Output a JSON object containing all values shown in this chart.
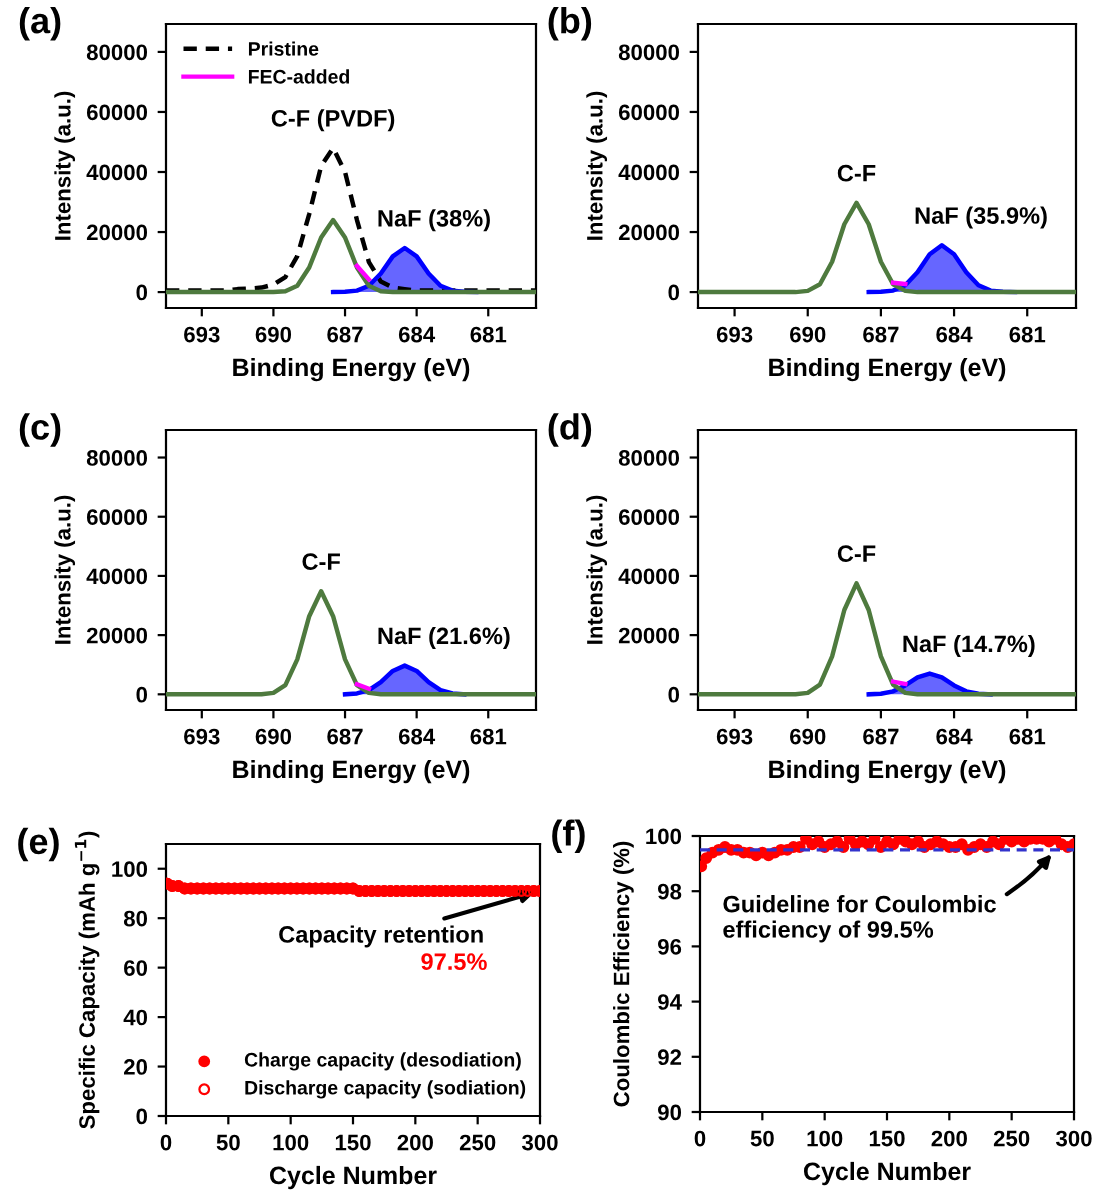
{
  "chart_data": [
    {
      "type": "line",
      "xlabel": "Binding Energy (eV)",
      "ylabel": "Intensity (a.u.)",
      "xlim": [
        694.5,
        679.0
      ],
      "xticks": [
        693,
        690,
        687,
        684,
        681
      ],
      "ylim": [
        -5300,
        89300
      ],
      "yticks": [
        0,
        20000,
        40000,
        60000,
        80000
      ],
      "legend": "top left",
      "x": [
        694.5,
        694,
        693.5,
        693,
        692.5,
        692,
        691.5,
        691,
        690.5,
        690,
        689.5,
        689,
        688.5,
        688,
        687.5,
        687,
        686.5,
        686,
        685.5,
        685,
        684.5,
        684,
        683.5,
        683,
        682.5,
        682,
        681.5,
        681,
        680.5,
        680,
        679.5,
        679
      ],
      "series": [
        {
          "name": "Pristine",
          "color": "#000000",
          "line_style": "dashed",
          "values": [
            500,
            500,
            500,
            500,
            500,
            500,
            1000,
            1200,
            1500,
            2500,
            5000,
            12000,
            26000,
            42000,
            48000,
            40000,
            24000,
            10000,
            3500,
            1500,
            1000,
            500,
            500,
            500,
            500,
            500,
            500,
            500,
            500,
            500,
            500,
            500
          ]
        },
        {
          "type": "area",
          "color": "#0000ff",
          "values": [
            null,
            null,
            null,
            null,
            null,
            null,
            null,
            null,
            null,
            null,
            null,
            null,
            null,
            null,
            0,
            100,
            500,
            2100,
            6200,
            11900,
            14700,
            11900,
            6200,
            2100,
            500,
            100,
            0,
            null,
            null,
            null,
            null,
            null
          ]
        },
        {
          "color": "#4e7a3e",
          "values": [
            0,
            0,
            0,
            0,
            0,
            0,
            0,
            0,
            0,
            0,
            300,
            2100,
            8200,
            18200,
            24000,
            18200,
            8200,
            2100,
            300,
            0,
            0,
            0,
            0,
            0,
            0,
            0,
            0,
            0,
            0,
            0,
            0,
            0
          ]
        },
        {
          "name": "FEC-added",
          "color": "#ff00ff",
          "values": [
            null,
            null,
            null,
            null,
            null,
            null,
            null,
            null,
            null,
            null,
            null,
            null,
            null,
            null,
            null,
            null,
            8700,
            4200,
            null,
            null,
            null,
            null,
            null,
            null,
            null,
            null,
            null,
            null,
            null,
            null,
            null,
            null
          ]
        }
      ],
      "annotations": [
        "(a)",
        {
          "text": "C-F (PVDF)",
          "x": 687.5,
          "y": 48000
        },
        {
          "text": "NaF (38%)",
          "x": 684.5,
          "y": 14700
        }
      ]
    },
    {
      "type": "line",
      "xlabel": "Binding Energy (eV)",
      "ylabel": "Intensity (a.u.)",
      "xlim": [
        694.5,
        679.0
      ],
      "xticks": [
        693,
        690,
        687,
        684,
        681
      ],
      "ylim": [
        -5300,
        89300
      ],
      "yticks": [
        0,
        20000,
        40000,
        60000,
        80000
      ],
      "x": [
        694.5,
        694,
        693.5,
        693,
        692.5,
        692,
        691.5,
        691,
        690.5,
        690,
        689.5,
        689,
        688.5,
        688,
        687.5,
        687,
        686.5,
        686,
        685.5,
        685,
        684.5,
        684,
        683.5,
        683,
        682.5,
        682,
        681.5,
        681,
        680.5,
        680,
        679.5,
        679
      ],
      "series": [
        {
          "type": "area",
          "color": "#0000ff",
          "values": [
            null,
            null,
            null,
            null,
            null,
            null,
            null,
            null,
            null,
            null,
            null,
            null,
            null,
            null,
            0,
            100,
            500,
            2300,
            6600,
            12600,
            15600,
            12600,
            6600,
            2300,
            500,
            100,
            0,
            null,
            null,
            null,
            null,
            null
          ]
        },
        {
          "color": "#4e7a3e",
          "values": [
            0,
            0,
            0,
            0,
            0,
            0,
            0,
            0,
            0,
            400,
            2600,
            10100,
            22600,
            29700,
            22600,
            10100,
            2600,
            400,
            0,
            0,
            0,
            0,
            0,
            0,
            0,
            0,
            0,
            0,
            0,
            0,
            0,
            0
          ]
        },
        {
          "color": "#ff00ff",
          "values": [
            null,
            null,
            null,
            null,
            null,
            null,
            null,
            null,
            null,
            null,
            null,
            null,
            null,
            null,
            null,
            null,
            3100,
            2700,
            null,
            null,
            null,
            null,
            null,
            null,
            null,
            null,
            null,
            null,
            null,
            null,
            null,
            null
          ]
        }
      ],
      "annotations": [
        "(b)",
        {
          "text": "C-F",
          "x": 688,
          "y": 29700
        },
        {
          "text": "NaF (35.9%)",
          "x": 684.5,
          "y": 15600
        }
      ]
    },
    {
      "type": "line",
      "xlabel": "Binding Energy (eV)",
      "ylabel": "Intensity (a.u.)",
      "xlim": [
        694.5,
        679.0
      ],
      "xticks": [
        693,
        690,
        687,
        684,
        681
      ],
      "ylim": [
        -5300,
        89300
      ],
      "yticks": [
        0,
        20000,
        40000,
        60000,
        80000
      ],
      "x": [
        694.5,
        694,
        693.5,
        693,
        692.5,
        692,
        691.5,
        691,
        690.5,
        690,
        689.5,
        689,
        688.5,
        688,
        687.5,
        687,
        686.5,
        686,
        685.5,
        685,
        684.5,
        684,
        683.5,
        683,
        682.5,
        682,
        681.5,
        681,
        680.5,
        680,
        679.5,
        679
      ],
      "series": [
        {
          "type": "area",
          "color": "#0000ff",
          "values": [
            null,
            null,
            null,
            null,
            null,
            null,
            null,
            null,
            null,
            null,
            null,
            null,
            null,
            null,
            null,
            0,
            300,
            1400,
            4100,
            7900,
            9700,
            7900,
            4100,
            1400,
            300,
            0,
            null,
            null,
            null,
            null,
            null,
            null
          ]
        },
        {
          "color": "#4e7a3e",
          "values": [
            0,
            0,
            0,
            0,
            0,
            0,
            0,
            0,
            0,
            500,
            3100,
            11800,
            26400,
            34800,
            26400,
            11800,
            3100,
            500,
            0,
            0,
            0,
            0,
            0,
            0,
            0,
            0,
            0,
            0,
            0,
            0,
            0,
            0
          ]
        },
        {
          "color": "#ff00ff",
          "values": [
            null,
            null,
            null,
            null,
            null,
            null,
            null,
            null,
            null,
            null,
            null,
            null,
            null,
            null,
            null,
            null,
            3400,
            1900,
            null,
            null,
            null,
            null,
            null,
            null,
            null,
            null,
            null,
            null,
            null,
            null,
            null,
            null
          ]
        }
      ],
      "annotations": [
        "(c)",
        {
          "text": "C-F",
          "x": 688,
          "y": 34800
        },
        {
          "text": "NaF (21.6%)",
          "x": 684.5,
          "y": 9700
        }
      ]
    },
    {
      "type": "line",
      "xlabel": "Binding Energy (eV)",
      "ylabel": "Intensity (a.u.)",
      "xlim": [
        694.5,
        679.0
      ],
      "xticks": [
        693,
        690,
        687,
        684,
        681
      ],
      "ylim": [
        -5300,
        89300
      ],
      "yticks": [
        0,
        20000,
        40000,
        60000,
        80000
      ],
      "x": [
        694.5,
        694,
        693.5,
        693,
        692.5,
        692,
        691.5,
        691,
        690.5,
        690,
        689.5,
        689,
        688.5,
        688,
        687.5,
        687,
        686.5,
        686,
        685.5,
        685,
        684.5,
        684,
        683.5,
        683,
        682.5,
        682,
        681.5,
        681,
        680.5,
        680,
        679.5,
        679
      ],
      "series": [
        {
          "type": "area",
          "color": "#0000ff",
          "values": [
            null,
            null,
            null,
            null,
            null,
            null,
            null,
            null,
            null,
            null,
            null,
            null,
            null,
            null,
            0,
            200,
            1000,
            3000,
            5700,
            7000,
            5700,
            3000,
            1000,
            200,
            0,
            null,
            null,
            null,
            null,
            null,
            null,
            null
          ]
        },
        {
          "color": "#4e7a3e",
          "values": [
            0,
            0,
            0,
            0,
            0,
            0,
            0,
            0,
            0,
            500,
            3300,
            12800,
            28500,
            37500,
            28500,
            12800,
            3300,
            500,
            0,
            0,
            0,
            0,
            0,
            0,
            0,
            0,
            0,
            0,
            0,
            0,
            0,
            0
          ]
        },
        {
          "color": "#ff00ff",
          "values": [
            null,
            null,
            null,
            null,
            null,
            null,
            null,
            null,
            null,
            null,
            null,
            null,
            null,
            null,
            null,
            null,
            4300,
            3500,
            null,
            null,
            null,
            null,
            null,
            null,
            null,
            null,
            null,
            null,
            null,
            null,
            null,
            null
          ]
        }
      ],
      "annotations": [
        "(d)",
        {
          "text": "C-F",
          "x": 688,
          "y": 37500
        },
        {
          "text": "NaF (14.7%)",
          "x": 685,
          "y": 7000
        }
      ]
    },
    {
      "type": "scatter",
      "marker": "circle",
      "xlabel": "Cycle Number",
      "ylabel": "Specific Capacity (mAh g$^{−1}$)",
      "xlim": [
        0,
        300
      ],
      "xticks": [
        0,
        50,
        100,
        150,
        200,
        250,
        300
      ],
      "ylim": [
        0,
        110
      ],
      "yticks": [
        0,
        20,
        40,
        60,
        80,
        100
      ],
      "legend": "bottom",
      "x": [
        1,
        5,
        10,
        15,
        20,
        25,
        30,
        35,
        40,
        45,
        50,
        55,
        60,
        65,
        70,
        75,
        80,
        85,
        90,
        95,
        100,
        105,
        110,
        115,
        120,
        125,
        130,
        135,
        140,
        145,
        150,
        155,
        160,
        165,
        170,
        175,
        180,
        185,
        190,
        195,
        200,
        205,
        210,
        215,
        220,
        225,
        230,
        235,
        240,
        245,
        250,
        255,
        260,
        265,
        270,
        275,
        280,
        285,
        290,
        295,
        300
      ],
      "series": [
        {
          "name": "Charge capacity (desodiation)",
          "color": "#ff0000",
          "values": [
            94,
            93,
            93,
            92,
            92,
            92,
            92,
            92,
            92,
            92,
            92,
            92,
            92,
            92,
            92,
            92,
            92,
            92,
            92,
            92,
            92,
            92,
            92,
            92,
            92,
            92,
            92,
            92,
            92,
            92,
            92,
            91,
            91,
            91,
            91,
            91,
            91,
            91,
            91,
            91,
            91,
            91,
            91,
            91,
            91,
            91,
            91,
            91,
            91,
            91,
            91,
            91,
            91,
            91,
            91,
            91,
            91,
            91,
            91,
            91,
            91
          ]
        },
        {
          "name": "Discharge capacity (sodiation)",
          "color": "#ff0000",
          "values": [
            94,
            93,
            93,
            92,
            92,
            92,
            92,
            92,
            92,
            92,
            92,
            92,
            92,
            92,
            92,
            92,
            92,
            92,
            92,
            92,
            92,
            92,
            92,
            92,
            92,
            92,
            92,
            92,
            92,
            92,
            92,
            91,
            91,
            91,
            91,
            91,
            91,
            91,
            91,
            91,
            91,
            91,
            91,
            91,
            91,
            91,
            91,
            91,
            91,
            91,
            91,
            91,
            91,
            91,
            91,
            91,
            91,
            91,
            91,
            91,
            91
          ]
        }
      ],
      "annotations": [
        "(e)",
        {
          "text": "Capacity retention",
          "x": 300,
          "y": 91
        },
        "97.5%"
      ]
    },
    {
      "type": "scatter",
      "marker": "circle",
      "xlabel": "Cycle Number",
      "ylabel": "Coulombic Efficiency (%)",
      "xlim": [
        0,
        300
      ],
      "xticks": [
        0,
        50,
        100,
        150,
        200,
        250,
        300
      ],
      "ylim": [
        90,
        100
      ],
      "yticks": [
        90,
        92,
        94,
        96,
        98,
        100
      ],
      "x": [
        1,
        5,
        10,
        15,
        20,
        25,
        30,
        35,
        40,
        45,
        50,
        55,
        60,
        65,
        70,
        75,
        80,
        85,
        90,
        95,
        100,
        105,
        110,
        115,
        120,
        125,
        130,
        135,
        140,
        145,
        150,
        155,
        160,
        165,
        170,
        175,
        180,
        185,
        190,
        195,
        200,
        205,
        210,
        215,
        220,
        225,
        230,
        235,
        240,
        245,
        250,
        255,
        260,
        265,
        270,
        275,
        280,
        285,
        290,
        295,
        300
      ],
      "series": [
        {
          "color": "#ff0000",
          "values": [
            98.9,
            99.2,
            99.4,
            99.5,
            99.6,
            99.5,
            99.5,
            99.4,
            99.4,
            99.3,
            99.4,
            99.3,
            99.4,
            99.5,
            99.5,
            99.6,
            99.6,
            99.9,
            99.7,
            99.8,
            99.6,
            99.7,
            99.8,
            99.6,
            99.9,
            99.7,
            99.8,
            99.7,
            99.9,
            99.6,
            99.8,
            99.7,
            99.9,
            99.8,
            99.7,
            99.8,
            99.6,
            99.7,
            99.8,
            99.7,
            99.6,
            99.6,
            99.7,
            99.5,
            99.6,
            99.7,
            99.6,
            99.8,
            99.7,
            99.9,
            99.8,
            99.9,
            99.8,
            99.9,
            99.9,
            99.9,
            99.8,
            99.9,
            99.7,
            99.6,
            99.7
          ]
        }
      ],
      "ref_lines": [
        {
          "axis": "y",
          "value": 99.5,
          "color": "#3333cc",
          "line_style": "dashed"
        }
      ],
      "annotations": [
        "(f)",
        {
          "text": "Guideline for Coulombic\nefficiency of 99.5%",
          "x": 285,
          "y": 99.5
        }
      ]
    }
  ]
}
